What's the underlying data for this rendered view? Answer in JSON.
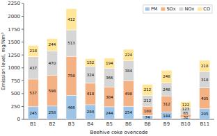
{
  "chart_data": {
    "type": "bar",
    "stacked": true,
    "categories": [
      "B1",
      "B2",
      "B3",
      "B4",
      "B5",
      "B6",
      "B8",
      "B9",
      "B10",
      "B11"
    ],
    "series": [
      {
        "name": "PM",
        "color": "#9dc3e6",
        "values": [
          245,
          258,
          466,
          284,
          244,
          254,
          74,
          144,
          32,
          205
        ]
      },
      {
        "name": "SOx",
        "color": "#f4b183",
        "values": [
          537,
          598,
          758,
          418,
          384,
          498,
          180,
          312,
          65,
          405
        ]
      },
      {
        "name": "NOx",
        "color": "#d6d6d6",
        "values": [
          437,
          470,
          513,
          324,
          366,
          384,
          212,
          248,
          123,
          318
        ]
      },
      {
        "name": "CO",
        "color": "#ffe699",
        "values": [
          218,
          244,
          412,
          152,
          194,
          224,
          212,
          248,
          122,
          218
        ]
      }
    ],
    "ylabel": "Emission level, mg/Nm³",
    "xlabel": "Beehive coke ovencode",
    "ylim": [
      0,
      2250
    ],
    "yticks": [
      0,
      250,
      500,
      750,
      1000,
      1250,
      1500,
      1750,
      2000,
      2250
    ],
    "grid": false,
    "legend": "upper right",
    "data_labels": true
  }
}
